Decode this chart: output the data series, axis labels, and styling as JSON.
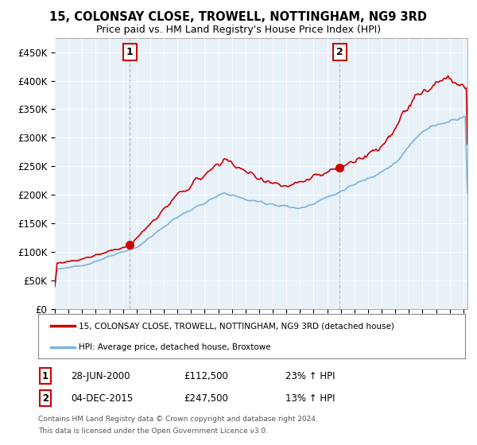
{
  "title": "15, COLONSAY CLOSE, TROWELL, NOTTINGHAM, NG9 3RD",
  "subtitle": "Price paid vs. HM Land Registry's House Price Index (HPI)",
  "ylabel_ticks": [
    "£0",
    "£50K",
    "£100K",
    "£150K",
    "£200K",
    "£250K",
    "£300K",
    "£350K",
    "£400K",
    "£450K"
  ],
  "ylim": [
    0,
    475000
  ],
  "xlim_start": 1995.0,
  "xlim_end": 2025.3,
  "legend_line1": "15, COLONSAY CLOSE, TROWELL, NOTTINGHAM, NG9 3RD (detached house)",
  "legend_line2": "HPI: Average price, detached house, Broxtowe",
  "marker1_date": "28-JUN-2000",
  "marker1_price": "£112,500",
  "marker1_hpi": "23% ↑ HPI",
  "marker2_date": "04-DEC-2015",
  "marker2_price": "£247,500",
  "marker2_hpi": "13% ↑ HPI",
  "footer": "Contains HM Land Registry data © Crown copyright and database right 2024.\nThis data is licensed under the Open Government Licence v3.0.",
  "sale_color": "#cc0000",
  "hpi_color": "#7ab3e0",
  "vline_color": "#bbbbbb",
  "bg_color": "#e8f0f8",
  "plot_bg": "#e8f0f8",
  "background_color": "#ffffff",
  "grid_color": "#ffffff"
}
